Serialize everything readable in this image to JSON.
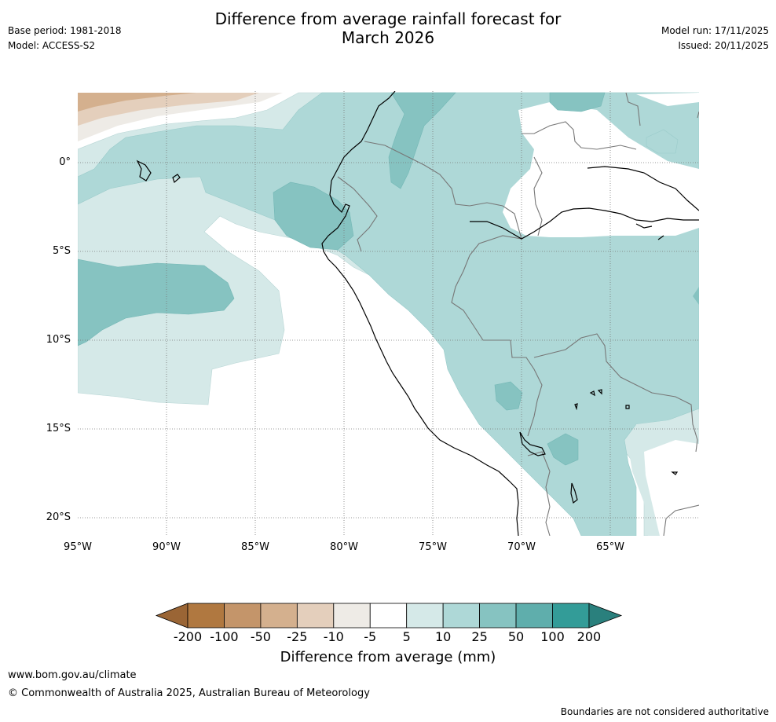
{
  "header": {
    "title_line1": "Difference from average rainfall forecast for",
    "title_line2": "March 2026",
    "base_period": "Base period: 1981-2018",
    "model": "Model: ACCESS-S2",
    "model_run": "Model run: 17/11/2025",
    "issued": "Issued: 20/11/2025"
  },
  "map": {
    "lat_labels": [
      "0°",
      "5°S",
      "10°S",
      "15°S",
      "20°S"
    ],
    "lon_labels": [
      "95°W",
      "90°W",
      "85°W",
      "80°W",
      "75°W",
      "70°W",
      "65°W"
    ]
  },
  "colorbar": {
    "title": "Difference from average (mm)",
    "tick_labels": [
      "-200",
      "-100",
      "-50",
      "-25",
      "-10",
      "-5",
      "5",
      "10",
      "25",
      "50",
      "100",
      "200"
    ],
    "colors": [
      "#9a6535",
      "#b07840",
      "#c4956a",
      "#d4b08e",
      "#e4cfbc",
      "#eeebe6",
      "#ffffff",
      "#d5e9e8",
      "#aed8d7",
      "#86c3c1",
      "#5faeac",
      "#339c98",
      "#2a807d"
    ]
  },
  "footer": {
    "website": "www.bom.gov.au/climate",
    "copyright": "© Commonwealth of Australia 2025, Australian Bureau of Meteorology",
    "disclaimer": "Boundaries are not considered authoritative"
  }
}
